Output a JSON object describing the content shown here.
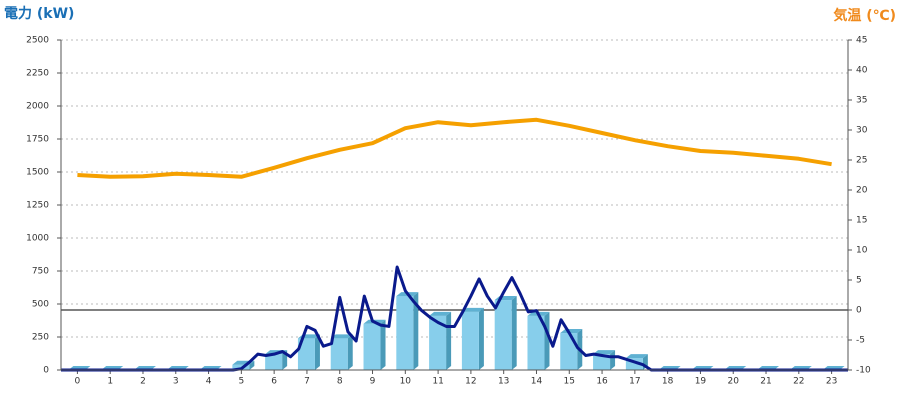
{
  "chart_data": {
    "type": "bar-line",
    "title_left": "電力 (kW)",
    "title_right": "気温 (℃)",
    "categories": [
      "0",
      "1",
      "2",
      "3",
      "4",
      "5",
      "6",
      "7",
      "8",
      "9",
      "10",
      "11",
      "12",
      "13",
      "14",
      "15",
      "16",
      "17",
      "18",
      "19",
      "20",
      "21",
      "22",
      "23"
    ],
    "ylim": [
      0,
      2500
    ],
    "yticks": [
      0,
      250,
      500,
      750,
      1000,
      1250,
      1500,
      1750,
      2000,
      2250,
      2500
    ],
    "y2lim": [
      -10,
      45
    ],
    "y2ticks": [
      -10,
      -5,
      0,
      5,
      10,
      15,
      20,
      25,
      30,
      35,
      40,
      45
    ],
    "grid": true,
    "series": [
      {
        "type": "bar",
        "color": "#87ceeb",
        "values": [
          0,
          0,
          0,
          0,
          0,
          40,
          120,
          240,
          240,
          350,
          560,
          410,
          440,
          530,
          410,
          280,
          120,
          90,
          0,
          0,
          0,
          0,
          0,
          0
        ]
      },
      {
        "type": "line",
        "color": "#f5a000",
        "axis": "y2",
        "values": [
          22.5,
          22.2,
          22.3,
          22.7,
          22.5,
          22.2,
          23.7,
          25.3,
          26.7,
          27.8,
          30.3,
          31.3,
          30.8,
          31.3,
          31.7,
          30.7,
          29.5,
          28.3,
          27.3,
          26.5,
          26.2,
          25.7,
          25.2,
          24.3
        ]
      },
      {
        "type": "xyline",
        "color": "#0a1a8c",
        "x": [
          -0.5,
          4.75,
          5,
          5.25,
          5.5,
          5.75,
          6,
          6.25,
          6.5,
          6.75,
          7,
          7.25,
          7.5,
          7.75,
          8,
          8.25,
          8.5,
          8.75,
          9,
          9.25,
          9.5,
          9.75,
          10,
          10.25,
          10.5,
          10.75,
          11,
          11.25,
          11.5,
          11.75,
          12,
          12.25,
          12.5,
          12.75,
          13,
          13.25,
          13.5,
          13.75,
          14,
          14.25,
          14.5,
          14.75,
          15,
          15.25,
          15.5,
          15.75,
          16,
          16.25,
          16.5,
          16.75,
          17,
          17.25,
          17.5,
          23.5
        ],
        "values": [
          0,
          0,
          10,
          60,
          120,
          110,
          120,
          140,
          100,
          160,
          330,
          300,
          180,
          200,
          550,
          290,
          220,
          560,
          370,
          340,
          330,
          780,
          600,
          520,
          450,
          400,
          360,
          330,
          330,
          440,
          560,
          690,
          560,
          470,
          590,
          700,
          580,
          440,
          450,
          330,
          180,
          380,
          280,
          170,
          110,
          120,
          110,
          100,
          100,
          80,
          60,
          40,
          0,
          0
        ]
      }
    ]
  }
}
